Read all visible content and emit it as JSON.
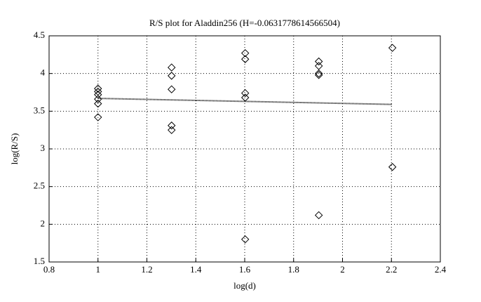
{
  "chart_data": {
    "type": "scatter",
    "title": "R/S plot for Aladdin256 (H=-0.0631778614566504)",
    "xlabel": "log(d)",
    "ylabel": "log(R/S)",
    "x": [
      1,
      1,
      1,
      1,
      1,
      1,
      1.301,
      1.301,
      1.301,
      1.301,
      1.301,
      1.602,
      1.602,
      1.602,
      1.602,
      1.602,
      1.903,
      1.903,
      1.903,
      1.903,
      1.903,
      2.204,
      2.204
    ],
    "values": [
      3.8,
      3.76,
      3.72,
      3.66,
      3.6,
      3.42,
      4.08,
      3.97,
      3.79,
      3.31,
      3.25,
      4.27,
      4.19,
      3.74,
      3.68,
      1.8,
      4.16,
      4.1,
      4.0,
      3.98,
      2.12,
      4.34,
      2.76
    ],
    "color": "#000000",
    "fit": {
      "x": [
        1,
        2.204
      ],
      "values": [
        3.67,
        3.59
      ],
      "color": "#000000"
    },
    "xlim": [
      0.8,
      2.4
    ],
    "xticks": [
      0.8,
      1,
      1.2,
      1.4,
      1.6,
      1.8,
      2,
      2.2,
      2.4
    ],
    "ylim": [
      1.5,
      4.5
    ],
    "yticks": [
      1.5,
      2,
      2.5,
      3,
      3.5,
      4,
      4.5
    ],
    "grid": true
  }
}
